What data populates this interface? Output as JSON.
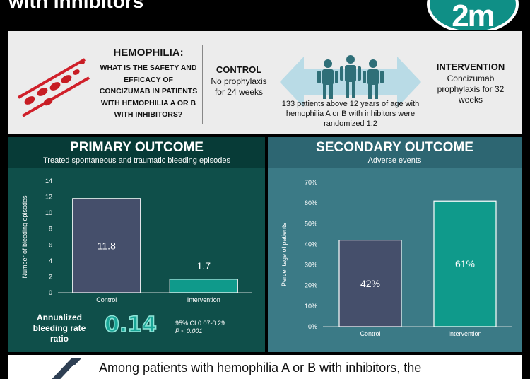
{
  "header": {
    "title": "with Inhibitors",
    "logo_text": "2m"
  },
  "question": {
    "title": "HEMOPHILIA:",
    "body": "WHAT IS THE SAFETY AND EFFICACY OF CONCIZUMAB IN PATIENTS WITH HEMOPHILIA A OR B WITH INHIBITORS?"
  },
  "control": {
    "title": "CONTROL",
    "body": "No prophylaxis for 24 weeks"
  },
  "randomization": {
    "text": "133 patients above 12 years of age with hemophilia A or B with inhibitors were randomized 1:2"
  },
  "intervention": {
    "title": "INTERVENTION",
    "body": "Concizumab prophylaxis for 32 weeks"
  },
  "primary": {
    "title": "PRIMARY OUTCOME",
    "subtitle": "Treated spontaneous and traumatic bleeding episodes",
    "abr_label": "Annualized bleeding rate ratio",
    "abr_value": "0.14",
    "ci": "95% CI 0.07-0.29",
    "p": "P < 0.001"
  },
  "secondary": {
    "title": "SECONDARY OUTCOME",
    "subtitle": "Adverse events"
  },
  "bottom": {
    "text": "Among patients with hemophilia A or B with inhibitors, the"
  },
  "colors": {
    "control_bar": "#454f6b",
    "intervention_bar": "#0f9a8b",
    "primary_bg": "#0f4f4a",
    "secondary_bg": "#3b7a86"
  },
  "chart_data": [
    {
      "type": "bar",
      "categories": [
        "Control",
        "Intervention"
      ],
      "values": [
        11.8,
        1.7
      ],
      "value_labels": [
        "11.8",
        "1.7"
      ],
      "ylabel": "Number of bleeding episodes",
      "ylim": [
        0,
        14
      ],
      "yticks": [
        "0",
        "2",
        "4",
        "6",
        "8",
        "10",
        "12",
        "14"
      ]
    },
    {
      "type": "bar",
      "categories": [
        "Control",
        "Intervention"
      ],
      "values": [
        42,
        61
      ],
      "value_labels": [
        "42%",
        "61%"
      ],
      "ylabel": "Percentage of patients",
      "ylim": [
        0,
        70
      ],
      "yticks": [
        "0%",
        "10%",
        "20%",
        "30%",
        "40%",
        "50%",
        "60%",
        "70%"
      ]
    }
  ]
}
